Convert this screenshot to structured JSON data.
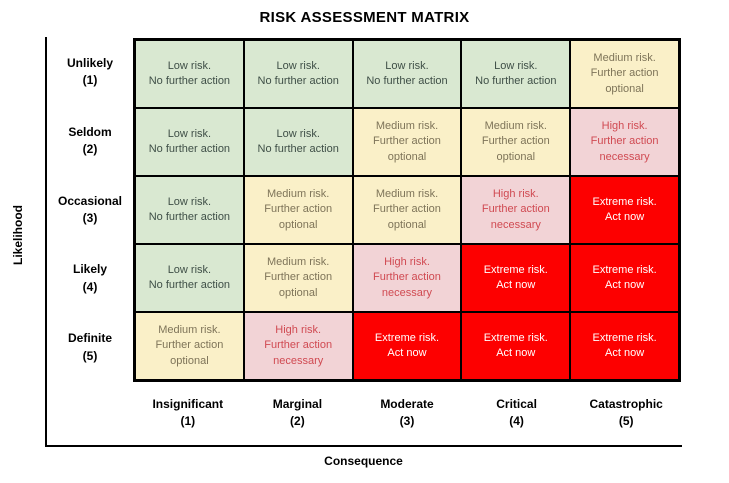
{
  "title": "RISK ASSESSMENT MATRIX",
  "axes": {
    "y_label": "Likelihood",
    "x_label": "Consequence"
  },
  "chart_data": {
    "type": "heatmap",
    "title": "RISK ASSESSMENT MATRIX",
    "xlabel": "Consequence",
    "ylabel": "Likelihood",
    "y_categories": [
      {
        "label": "Unlikely",
        "number": "(1)"
      },
      {
        "label": "Seldom",
        "number": "(2)"
      },
      {
        "label": "Occasional",
        "number": "(3)"
      },
      {
        "label": "Likely",
        "number": "(4)"
      },
      {
        "label": "Definite",
        "number": "(5)"
      }
    ],
    "x_categories": [
      {
        "label": "Insignificant",
        "number": "(1)"
      },
      {
        "label": "Marginal",
        "number": "(2)"
      },
      {
        "label": "Moderate",
        "number": "(3)"
      },
      {
        "label": "Critical",
        "number": "(4)"
      },
      {
        "label": "Catastrophic",
        "number": "(5)"
      }
    ],
    "levels": {
      "low": {
        "text": "Low risk.\nNo further action",
        "bg": "#d9e8d1",
        "fg": "#3f4f47"
      },
      "medium": {
        "text": "Medium risk.\nFurther action optional",
        "bg": "#faf0c8",
        "fg": "#7e7459"
      },
      "high": {
        "text": "High risk.\nFurther action necessary",
        "bg": "#f2d3d6",
        "fg": "#d04a52"
      },
      "extreme": {
        "text": "Extreme risk.\nAct now",
        "bg": "#fd0000",
        "fg": "#ffffff"
      }
    },
    "cells": [
      [
        "low",
        "low",
        "low",
        "low",
        "medium"
      ],
      [
        "low",
        "low",
        "medium",
        "medium",
        "high"
      ],
      [
        "low",
        "medium",
        "medium",
        "high",
        "extreme"
      ],
      [
        "low",
        "medium",
        "high",
        "extreme",
        "extreme"
      ],
      [
        "medium",
        "high",
        "extreme",
        "extreme",
        "extreme"
      ]
    ],
    "grid_border_color": "#000000",
    "legend_position": "none",
    "grid": true
  }
}
